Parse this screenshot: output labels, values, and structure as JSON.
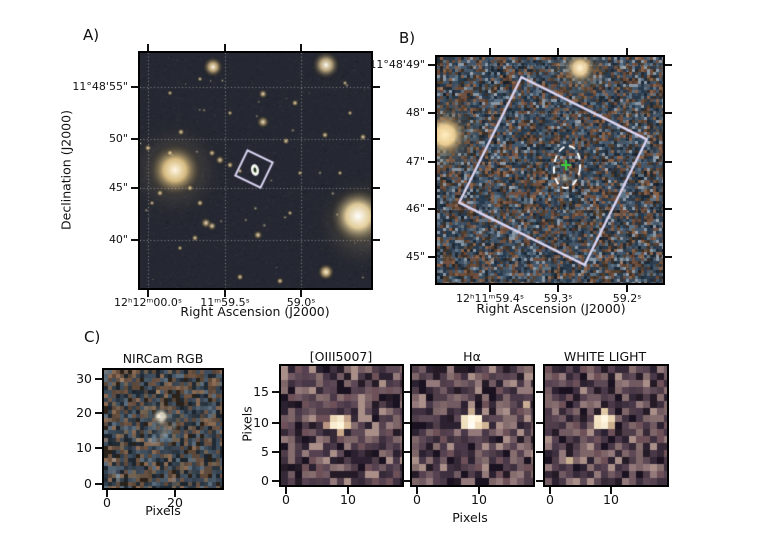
{
  "figure": {
    "panel_a": {
      "label": "A)",
      "ylabel": "Declination (J2000)",
      "xlabel": "Right Ascension (J2000)",
      "yticks": [
        "11°48'55\"",
        "50\"",
        "45\"",
        "40\""
      ],
      "xticks": [
        "12ʰ12ᵐ00.0ˢ",
        "11ᵐ59.5ˢ",
        "59.0ˢ"
      ]
    },
    "panel_b": {
      "label": "B)",
      "xlabel": "Right Ascension (J2000)",
      "yticks": [
        "11°48'49\"",
        "48\"",
        "47\"",
        "46\"",
        "45\""
      ],
      "xticks": [
        "12ʰ11ᵐ59.4ˢ",
        "59.3ˢ",
        "59.2ˢ"
      ]
    },
    "panel_c": {
      "label": "C)",
      "shared_xlabel": "Pixels",
      "subpanels": [
        {
          "id": "nircam",
          "title": "NIRCam RGB",
          "yticks": [
            "30",
            "20",
            "10",
            "0"
          ],
          "xticks": [
            "0",
            "20"
          ],
          "xlabel": "Pixels"
        },
        {
          "id": "oiii",
          "title": "[OIII5007]",
          "ylabel": "Pixels",
          "yticks": [
            "15",
            "10",
            "5",
            "0"
          ],
          "xticks": [
            "0",
            "10"
          ]
        },
        {
          "id": "halpha",
          "title": "Hα",
          "yticks": [],
          "xticks": [
            "0",
            "10"
          ]
        },
        {
          "id": "white",
          "title": "WHITE LIGHT",
          "yticks": [],
          "xticks": [
            "0",
            "10"
          ]
        }
      ]
    },
    "colors": {
      "aperture_box": "#d7d2f0",
      "source_ellipse": "#ffffff",
      "cross_marker": "#3ecf3e"
    }
  }
}
